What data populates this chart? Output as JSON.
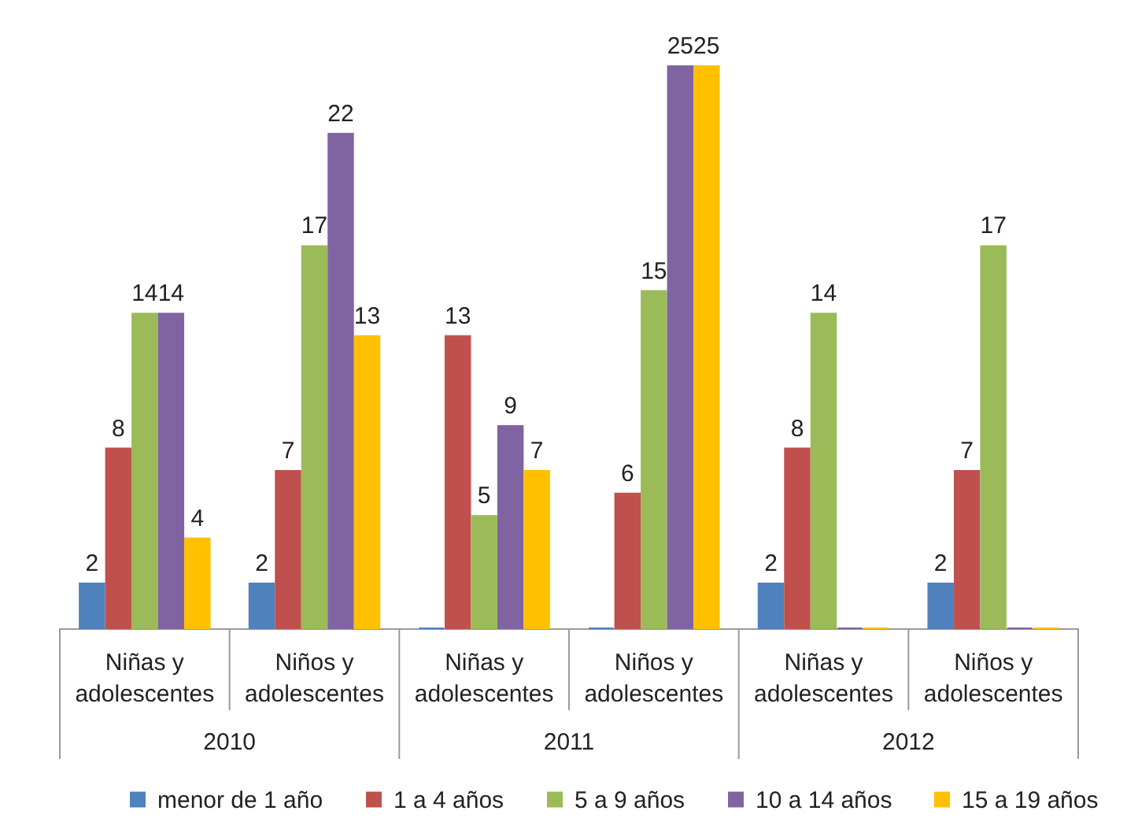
{
  "chart_data": {
    "type": "bar",
    "categories": [
      "Niñas y adolescentes",
      "Niños y adolescentes",
      "Niñas y adolescentes",
      "Niños y adolescentes",
      "Niñas y adolescentes",
      "Niños y adolescentes"
    ],
    "series": [
      {
        "name": "menor de 1 año",
        "color": "#4f81bd",
        "values": [
          2,
          2,
          0,
          0,
          2,
          2
        ],
        "value_labels": [
          "2",
          "2",
          null,
          null,
          "2",
          "2"
        ]
      },
      {
        "name": "1 a 4 años",
        "color": "#c0504d",
        "values": [
          8,
          7,
          13,
          6,
          8,
          7
        ],
        "value_labels": [
          "8",
          "7",
          "13",
          "6",
          "8",
          "7"
        ]
      },
      {
        "name": "5 a 9 años",
        "color": "#9bbb59",
        "values": [
          14,
          17,
          5,
          15,
          14,
          17
        ],
        "value_labels": [
          "14",
          "17",
          "5",
          "15",
          "14",
          "17"
        ]
      },
      {
        "name": "10 a 14 años",
        "color": "#8064a2",
        "values": [
          14,
          22,
          9,
          25,
          0,
          0
        ],
        "value_labels": [
          "14",
          "22",
          "9",
          "25",
          null,
          null
        ]
      },
      {
        "name": "15 a 19 años",
        "color": "#ffc000",
        "values": [
          4,
          13,
          7,
          25,
          0,
          0
        ],
        "value_labels": [
          "4",
          "13",
          "7",
          "25",
          null,
          null
        ]
      }
    ],
    "annotations": [
      "2010",
      "2011",
      "2012"
    ],
    "legend": "bottom"
  }
}
